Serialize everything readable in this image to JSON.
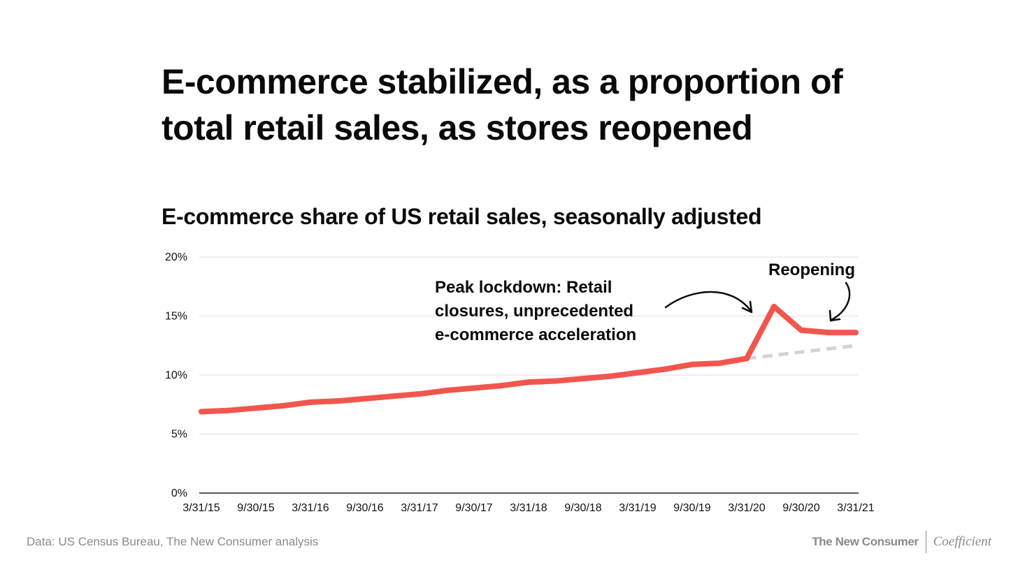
{
  "headline": "E-commerce stabilized, as a proportion of total retail sales, as stores reopened",
  "footer": {
    "source": "Data: US Census Bureau, The New Consumer analysis",
    "logo_primary": "The New Consumer",
    "logo_secondary": "Coefficient"
  },
  "colors": {
    "series": "#f1564e",
    "trend": "#d4d4d4",
    "grid": "#dedede",
    "axis": "#222222"
  },
  "annotations": {
    "lockdown": [
      "Peak lockdown: Retail",
      "closures, unprecedented",
      "e-commerce acceleration"
    ],
    "reopening": "Reopening"
  },
  "chart_data": {
    "type": "line",
    "title": "E-commerce share of US retail sales, seasonally adjusted",
    "xlabel": "",
    "ylabel": "",
    "ylim": [
      0,
      20
    ],
    "yticks": [
      0,
      5,
      10,
      15,
      20
    ],
    "ytick_labels": [
      "0%",
      "5%",
      "10%",
      "15%",
      "20%"
    ],
    "grid": true,
    "x": [
      "3/31/15",
      "6/30/15",
      "9/30/15",
      "12/31/15",
      "3/31/16",
      "6/30/16",
      "9/30/16",
      "12/31/16",
      "3/31/17",
      "6/30/17",
      "9/30/17",
      "12/31/17",
      "3/31/18",
      "6/30/18",
      "9/30/18",
      "12/31/18",
      "3/31/19",
      "6/30/19",
      "9/30/19",
      "12/31/19",
      "3/31/20",
      "6/30/20",
      "9/30/20",
      "12/31/20",
      "3/31/21"
    ],
    "xtick_labels": [
      "3/31/15",
      "9/30/15",
      "3/31/16",
      "9/30/16",
      "3/31/17",
      "9/30/17",
      "3/31/18",
      "9/30/18",
      "3/31/19",
      "9/30/19",
      "3/31/20",
      "9/30/20",
      "3/31/21"
    ],
    "series": [
      {
        "values": [
          6.9,
          7.0,
          7.2,
          7.4,
          7.7,
          7.8,
          8.0,
          8.2,
          8.4,
          8.7,
          8.9,
          9.1,
          9.4,
          9.5,
          9.7,
          9.9,
          10.2,
          10.5,
          10.9,
          11.0,
          11.4,
          15.8,
          13.8,
          13.6,
          13.6
        ],
        "style": "solid"
      },
      {
        "x": [
          "3/31/20",
          "3/31/21"
        ],
        "values": [
          11.4,
          12.5
        ],
        "style": "dashed"
      }
    ]
  }
}
